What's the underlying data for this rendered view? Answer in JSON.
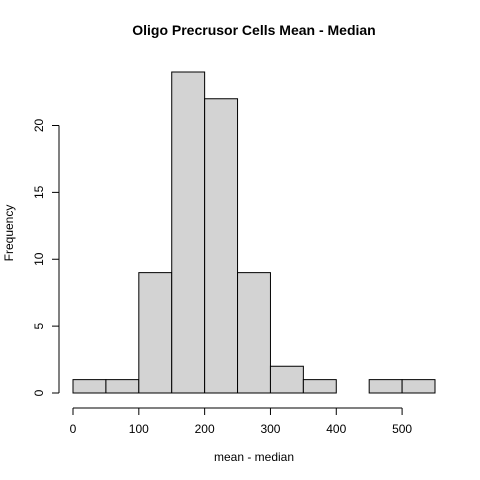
{
  "chart_data": {
    "type": "bar",
    "title": "Oligo Precrusor Cells Mean - Median",
    "xlabel": "mean - median",
    "ylabel": "Frequency",
    "bin_edges": [
      0,
      50,
      100,
      150,
      200,
      250,
      300,
      350,
      400,
      450,
      500,
      550
    ],
    "values": [
      1,
      1,
      9,
      24,
      22,
      9,
      2,
      1,
      0,
      1,
      1
    ],
    "xlim": [
      0,
      550
    ],
    "ylim": [
      0,
      24
    ],
    "x_ticks": [
      0,
      100,
      200,
      300,
      400,
      500
    ],
    "y_ticks": [
      0,
      5,
      10,
      15,
      20
    ],
    "bar_color": "#d3d3d3",
    "grid": false,
    "legend": "none"
  }
}
